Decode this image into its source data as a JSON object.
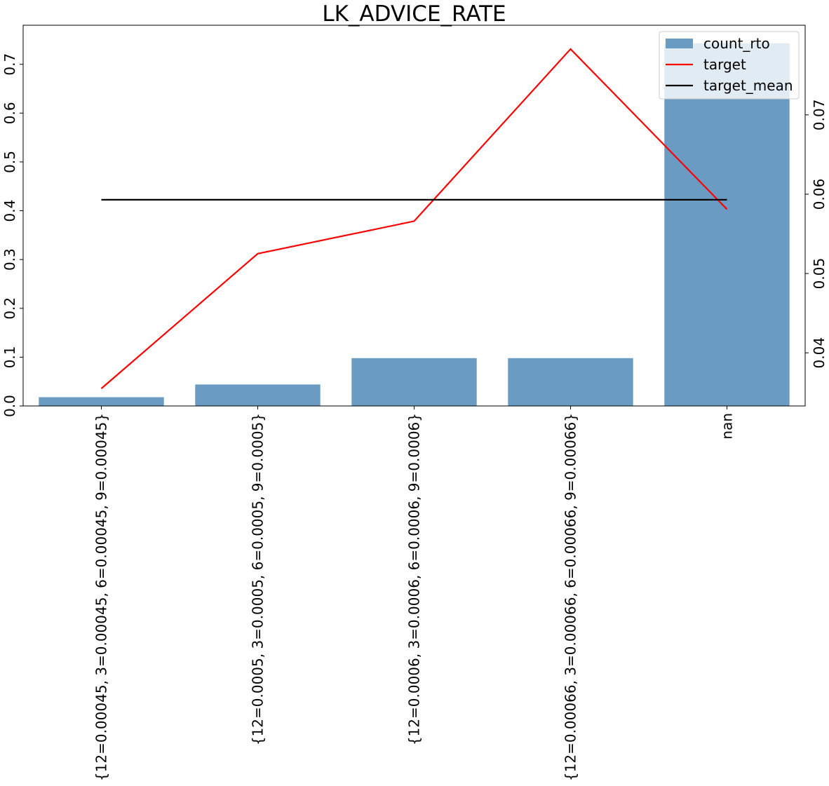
{
  "chart_data": {
    "type": "bar",
    "title": "LK_ADVICE_RATE",
    "xlabel": "",
    "ylabel": "",
    "categories": [
      "{12=0.00045, 3=0.00045, 6=0.00045, 9=0.00045}",
      "{12=0.0005, 3=0.0005, 6=0.0005, 9=0.0005}",
      "{12=0.0006, 3=0.0006, 6=0.0006, 9=0.0006}",
      "{12=0.00066, 3=0.00066, 6=0.00066, 9=0.00066}",
      "nan"
    ],
    "series": [
      {
        "name": "count_rto",
        "type": "bar",
        "axis": "left",
        "color": "#6a9bc3",
        "values": [
          0.018,
          0.044,
          0.098,
          0.098,
          0.743
        ]
      },
      {
        "name": "target",
        "type": "line",
        "axis": "right",
        "color": "#ff0000",
        "values": [
          0.0355,
          0.0525,
          0.0566,
          0.0783,
          0.0581
        ]
      },
      {
        "name": "target_mean",
        "type": "line",
        "axis": "right",
        "color": "#000000",
        "values": [
          0.0593,
          0.0593,
          0.0593,
          0.0593,
          0.0593
        ]
      }
    ],
    "ylim_left": [
      0,
      0.78
    ],
    "yticks_left": [
      "0.0",
      "0.1",
      "0.2",
      "0.3",
      "0.4",
      "0.5",
      "0.6",
      "0.7"
    ],
    "ylim_right": [
      0.0333,
      0.0813
    ],
    "yticks_right": [
      "0.04",
      "0.05",
      "0.06",
      "0.07"
    ],
    "legend": "top-right",
    "grid": false
  }
}
